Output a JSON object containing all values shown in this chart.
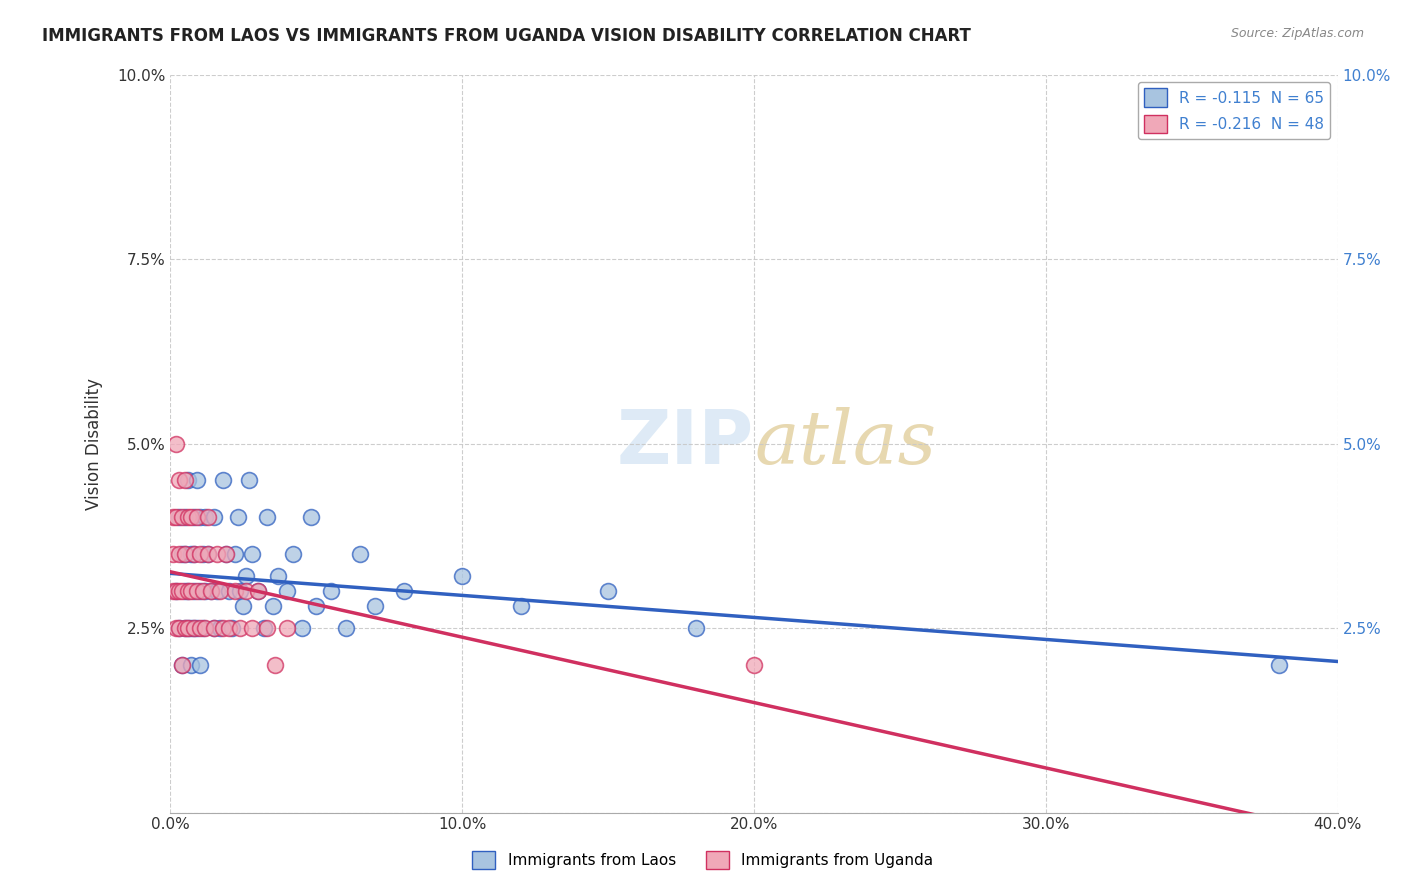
{
  "title": "IMMIGRANTS FROM LAOS VS IMMIGRANTS FROM UGANDA VISION DISABILITY CORRELATION CHART",
  "source": "Source: ZipAtlas.com",
  "xlabel": "",
  "ylabel": "Vision Disability",
  "xlim": [
    0.0,
    0.4
  ],
  "ylim": [
    0.0,
    0.1
  ],
  "xticks": [
    0.0,
    0.1,
    0.2,
    0.3,
    0.4
  ],
  "yticks": [
    0.0,
    0.025,
    0.05,
    0.075,
    0.1
  ],
  "xticklabels": [
    "0.0%",
    "10.0%",
    "20.0%",
    "30.0%",
    "40.0%"
  ],
  "yticklabels": [
    "",
    "2.5%",
    "5.0%",
    "7.5%",
    "10.0%"
  ],
  "yticklabels_right": [
    "",
    "2.5%",
    "5.0%",
    "7.5%",
    "10.0%"
  ],
  "legend1_label": "Immigrants from Laos",
  "legend2_label": "Immigrants from Uganda",
  "r1": -0.115,
  "n1": 65,
  "r2": -0.216,
  "n2": 48,
  "color_laos": "#a8c4e0",
  "color_uganda": "#f0a8b8",
  "line_color_laos": "#3060c0",
  "line_color_uganda": "#d03060",
  "background_color": "#ffffff",
  "grid_color": "#c8c8c8",
  "laos_x": [
    0.002,
    0.003,
    0.003,
    0.004,
    0.004,
    0.005,
    0.005,
    0.005,
    0.005,
    0.006,
    0.006,
    0.006,
    0.007,
    0.007,
    0.007,
    0.008,
    0.008,
    0.008,
    0.008,
    0.009,
    0.009,
    0.01,
    0.01,
    0.01,
    0.011,
    0.011,
    0.012,
    0.012,
    0.013,
    0.014,
    0.015,
    0.015,
    0.016,
    0.017,
    0.018,
    0.019,
    0.02,
    0.021,
    0.022,
    0.023,
    0.024,
    0.025,
    0.026,
    0.027,
    0.028,
    0.03,
    0.032,
    0.033,
    0.035,
    0.037,
    0.04,
    0.042,
    0.045,
    0.048,
    0.05,
    0.055,
    0.06,
    0.065,
    0.07,
    0.08,
    0.1,
    0.12,
    0.15,
    0.18,
    0.38
  ],
  "laos_y": [
    0.03,
    0.025,
    0.04,
    0.02,
    0.035,
    0.025,
    0.03,
    0.035,
    0.04,
    0.025,
    0.03,
    0.045,
    0.02,
    0.025,
    0.035,
    0.025,
    0.03,
    0.035,
    0.04,
    0.025,
    0.045,
    0.02,
    0.03,
    0.04,
    0.025,
    0.035,
    0.03,
    0.04,
    0.035,
    0.03,
    0.025,
    0.04,
    0.03,
    0.025,
    0.045,
    0.035,
    0.03,
    0.025,
    0.035,
    0.04,
    0.03,
    0.028,
    0.032,
    0.045,
    0.035,
    0.03,
    0.025,
    0.04,
    0.028,
    0.032,
    0.03,
    0.035,
    0.025,
    0.04,
    0.028,
    0.03,
    0.025,
    0.035,
    0.028,
    0.03,
    0.032,
    0.028,
    0.03,
    0.025,
    0.02
  ],
  "uganda_x": [
    0.001,
    0.001,
    0.001,
    0.002,
    0.002,
    0.002,
    0.002,
    0.003,
    0.003,
    0.003,
    0.003,
    0.004,
    0.004,
    0.004,
    0.005,
    0.005,
    0.005,
    0.006,
    0.006,
    0.006,
    0.007,
    0.007,
    0.008,
    0.008,
    0.009,
    0.009,
    0.01,
    0.01,
    0.011,
    0.012,
    0.013,
    0.013,
    0.014,
    0.015,
    0.016,
    0.017,
    0.018,
    0.019,
    0.02,
    0.022,
    0.024,
    0.026,
    0.028,
    0.03,
    0.033,
    0.036,
    0.04,
    0.2
  ],
  "uganda_y": [
    0.03,
    0.035,
    0.04,
    0.025,
    0.03,
    0.04,
    0.05,
    0.025,
    0.03,
    0.035,
    0.045,
    0.02,
    0.03,
    0.04,
    0.025,
    0.035,
    0.045,
    0.025,
    0.03,
    0.04,
    0.03,
    0.04,
    0.025,
    0.035,
    0.03,
    0.04,
    0.025,
    0.035,
    0.03,
    0.025,
    0.035,
    0.04,
    0.03,
    0.025,
    0.035,
    0.03,
    0.025,
    0.035,
    0.025,
    0.03,
    0.025,
    0.03,
    0.025,
    0.03,
    0.025,
    0.02,
    0.025,
    0.02
  ]
}
